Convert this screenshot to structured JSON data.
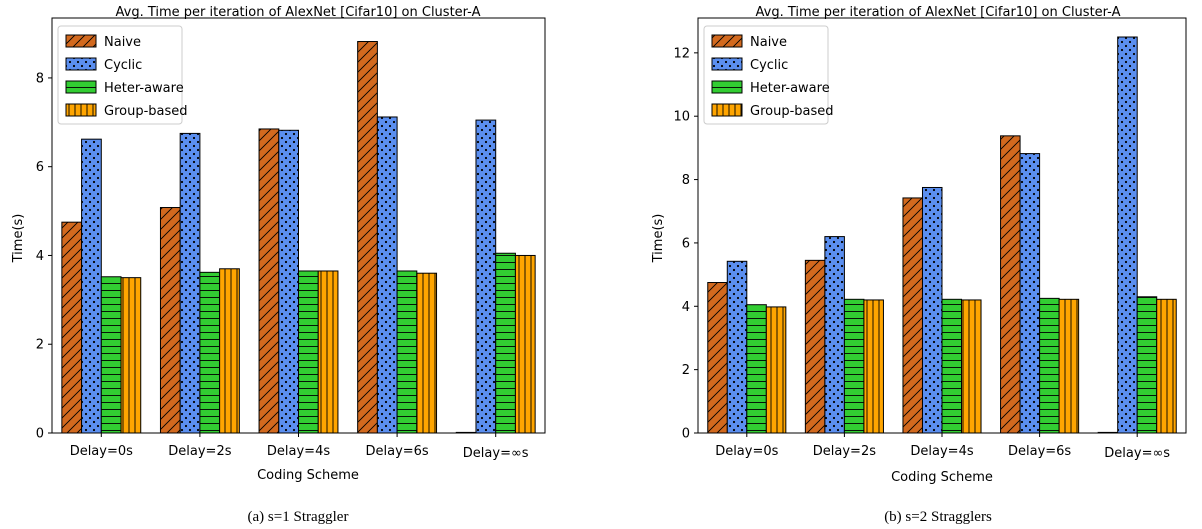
{
  "chart_data": [
    {
      "type": "bar",
      "title": "Avg. Time per iteration of AlexNet [Cifar10] on Cluster-A",
      "caption": "(a) s=1 Straggler",
      "xlabel": "Coding Scheme",
      "ylabel": "Time(s)",
      "ylim": [
        0,
        9.35
      ],
      "yticks": [
        "0",
        "2",
        "4",
        "6",
        "8"
      ],
      "categories": [
        "Delay=0s",
        "Delay=2s",
        "Delay=4s",
        "Delay=6s",
        "Delay=∞s"
      ],
      "legend_position": "upper-left",
      "series": [
        {
          "name": "Naive",
          "values": [
            4.75,
            5.08,
            6.85,
            8.82,
            0.0
          ]
        },
        {
          "name": "Cyclic",
          "values": [
            6.62,
            6.75,
            6.82,
            7.12,
            7.05
          ]
        },
        {
          "name": "Heter-aware",
          "values": [
            3.52,
            3.62,
            3.65,
            3.65,
            4.05
          ]
        },
        {
          "name": "Group-based",
          "values": [
            3.5,
            3.7,
            3.65,
            3.6,
            4.0
          ]
        }
      ]
    },
    {
      "type": "bar",
      "title": "Avg. Time per iteration of AlexNet [Cifar10] on Cluster-A",
      "caption": "(b) s=2 Stragglers",
      "xlabel": "Coding Scheme",
      "ylabel": "Time(s)",
      "ylim": [
        0,
        13.1
      ],
      "yticks": [
        "0",
        "2",
        "4",
        "6",
        "8",
        "10",
        "12"
      ],
      "categories": [
        "Delay=0s",
        "Delay=2s",
        "Delay=4s",
        "Delay=6s",
        "Delay=∞s"
      ],
      "legend_position": "upper-left",
      "series": [
        {
          "name": "Naive",
          "values": [
            4.75,
            5.45,
            7.42,
            9.38,
            0.0
          ]
        },
        {
          "name": "Cyclic",
          "values": [
            5.42,
            6.2,
            7.75,
            8.82,
            12.5
          ]
        },
        {
          "name": "Heter-aware",
          "values": [
            4.05,
            4.22,
            4.22,
            4.25,
            4.3
          ]
        },
        {
          "name": "Group-based",
          "values": [
            3.98,
            4.2,
            4.2,
            4.22,
            4.22
          ]
        }
      ]
    }
  ],
  "series_style": [
    {
      "fill": "#d2691e",
      "hatch": "diagonal"
    },
    {
      "fill": "#5b8ff0",
      "hatch": "dots"
    },
    {
      "fill": "#32cd32",
      "hatch": "horizontal"
    },
    {
      "fill": "#ffa500",
      "hatch": "vertical"
    }
  ]
}
